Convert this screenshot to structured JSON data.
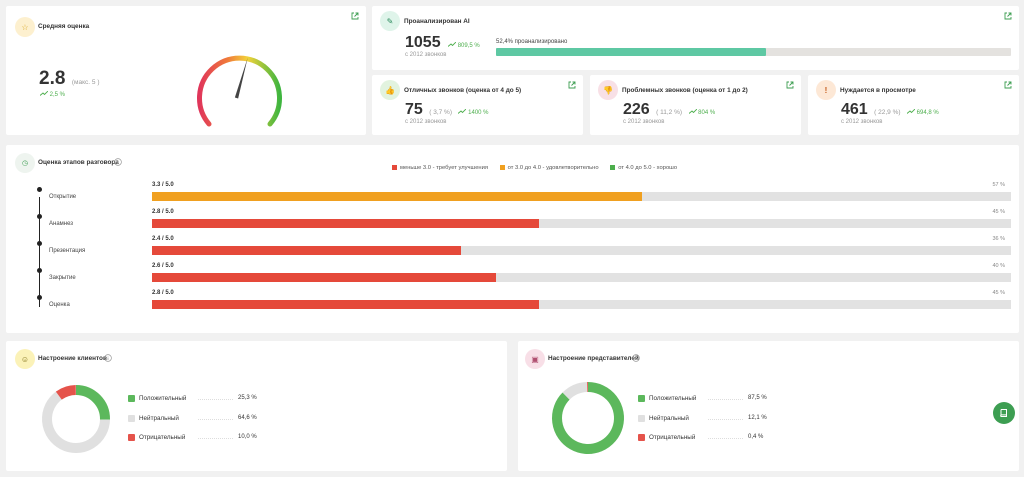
{
  "avg": {
    "title": "Средняя оценка",
    "value": "2.8",
    "max": "(макс. 5 )",
    "trend": "2,5 %"
  },
  "ai": {
    "title": "Проанализирован AI",
    "value": "1055",
    "trend": "809,5 %",
    "sub": "с 2012 звонков",
    "progress_label": "52,4% проанализировано",
    "progress": 0.524
  },
  "excellent": {
    "title": "Отличных звонков (оценка от 4 до 5)",
    "value": "75",
    "pct": "( 3,7 %)",
    "trend": "1400 %",
    "sub": "с 2012 звонков"
  },
  "problem": {
    "title": "Проблемных звонков (оценка от 1 до 2)",
    "value": "226",
    "pct": "( 11,2 %)",
    "trend": "804 %",
    "sub": "с 2012 звонков"
  },
  "review": {
    "title": "Нуждается в просмотре",
    "value": "461",
    "pct": "( 22,9 %)",
    "trend": "694,8 %",
    "sub": "с 2012 звонков"
  },
  "stages": {
    "title": "Оценка этапов разговора",
    "legend": [
      {
        "label": "меньше 3.0 - требует улучшения",
        "color": "#e5493a"
      },
      {
        "label": "от 3.0 до 4.0 - удовлетворительно",
        "color": "#f0a020"
      },
      {
        "label": "от 4.0 до 5.0 - хорошо",
        "color": "#4cae4c"
      }
    ],
    "items": [
      {
        "name": "Открытие",
        "score": "3.3 / 5.0",
        "pct": "57 %",
        "fraction": 0.57,
        "color": "#f0a020"
      },
      {
        "name": "Анамнез",
        "score": "2.8 / 5.0",
        "pct": "45 %",
        "fraction": 0.45,
        "color": "#e5493a"
      },
      {
        "name": "Презентация",
        "score": "2.4 / 5.0",
        "pct": "36 %",
        "fraction": 0.36,
        "color": "#e5493a"
      },
      {
        "name": "Закрытие",
        "score": "2.6 / 5.0",
        "pct": "40 %",
        "fraction": 0.4,
        "color": "#e5493a"
      },
      {
        "name": "Оценка",
        "score": "2.8 / 5.0",
        "pct": "45 %",
        "fraction": 0.45,
        "color": "#e5493a"
      }
    ]
  },
  "clients": {
    "title": "Настроение клиентов",
    "rows": [
      {
        "label": "Положительный",
        "value": "25,3 %",
        "fraction": 0.253,
        "color": "#5cb85c"
      },
      {
        "label": "Нейтральный",
        "value": "64,6 %",
        "fraction": 0.646,
        "color": "#e0e0e0"
      },
      {
        "label": "Отрицательный",
        "value": "10,0 %",
        "fraction": 0.1,
        "color": "#e5534b"
      }
    ]
  },
  "reps": {
    "title": "Настроение представителей",
    "rows": [
      {
        "label": "Положительный",
        "value": "87,5 %",
        "fraction": 0.875,
        "color": "#5cb85c"
      },
      {
        "label": "Нейтральный",
        "value": "12,1 %",
        "fraction": 0.121,
        "color": "#e0e0e0"
      },
      {
        "label": "Отрицательный",
        "value": "0,4 %",
        "fraction": 0.004,
        "color": "#e5534b"
      }
    ]
  },
  "gauge": {
    "fraction": 0.56
  },
  "icons": {
    "star": "star-icon",
    "ai": "wand-icon",
    "thumbs_up": "thumbs-up-icon",
    "thumbs_down": "thumbs-down-icon",
    "exclamation": "exclamation-icon",
    "external": "external-link-icon",
    "info": "info-icon",
    "book": "book-icon"
  }
}
